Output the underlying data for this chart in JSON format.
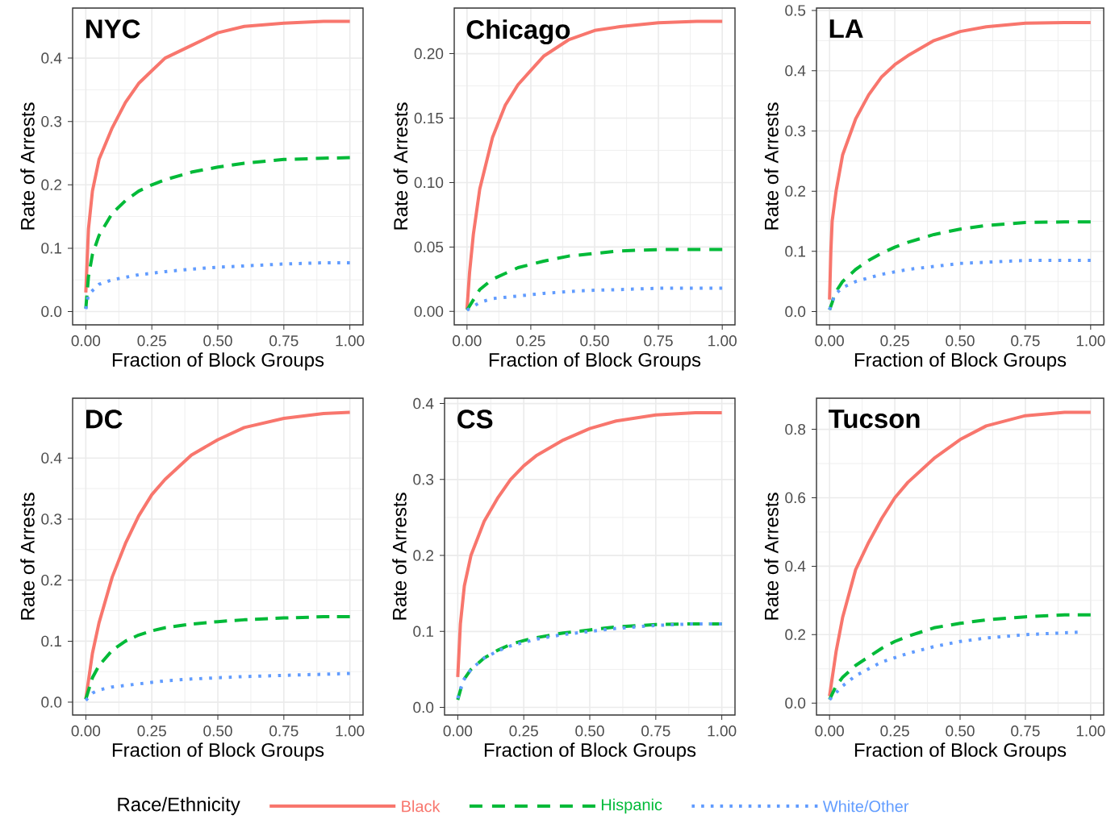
{
  "chart_data": [
    {
      "type": "line",
      "title": "NYC",
      "xlabel": "Fraction of Block Groups",
      "ylabel": "Rate of Arrests",
      "grid": true,
      "xlim": [
        -0.05,
        1.05
      ],
      "ylim": [
        -0.021,
        0.479
      ],
      "xticks": [
        {
          "value": 0,
          "label": "0.00"
        },
        {
          "value": 0.25,
          "label": "0.25"
        },
        {
          "value": 0.5,
          "label": "0.50"
        },
        {
          "value": 0.75,
          "label": "0.75"
        },
        {
          "value": 1,
          "label": "1.00"
        }
      ],
      "yticks": [
        {
          "value": 0,
          "label": "0.0"
        },
        {
          "value": 0.1,
          "label": "0.1"
        },
        {
          "value": 0.2,
          "label": "0.2"
        },
        {
          "value": 0.3,
          "label": "0.3"
        },
        {
          "value": 0.4,
          "label": "0.4"
        }
      ],
      "series": [
        {
          "color": "#f8766d",
          "line_style": "solid",
          "x": [
            0,
            0.01,
            0.025,
            0.05,
            0.1,
            0.15,
            0.2,
            0.25,
            0.3,
            0.4,
            0.5,
            0.6,
            0.75,
            0.9,
            1
          ],
          "values": [
            0.03,
            0.13,
            0.19,
            0.24,
            0.29,
            0.33,
            0.36,
            0.38,
            0.4,
            0.42,
            0.44,
            0.45,
            0.455,
            0.458,
            0.458
          ]
        },
        {
          "color": "#00ba38",
          "line_style": "dashed",
          "x": [
            0,
            0.005,
            0.01,
            0.025,
            0.05,
            0.1,
            0.15,
            0.2,
            0.25,
            0.3,
            0.4,
            0.5,
            0.6,
            0.75,
            0.9,
            1
          ],
          "values": [
            0.005,
            0.03,
            0.055,
            0.09,
            0.12,
            0.155,
            0.175,
            0.19,
            0.2,
            0.208,
            0.22,
            0.228,
            0.234,
            0.24,
            0.242,
            0.243
          ]
        },
        {
          "color": "#619cff",
          "line_style": "dotted",
          "x": [
            0,
            0.01,
            0.05,
            0.1,
            0.2,
            0.3,
            0.4,
            0.5,
            0.6,
            0.75,
            0.9,
            1
          ],
          "values": [
            0.004,
            0.027,
            0.043,
            0.05,
            0.058,
            0.063,
            0.067,
            0.07,
            0.072,
            0.075,
            0.077,
            0.077
          ]
        }
      ]
    },
    {
      "type": "line",
      "title": "Chicago",
      "xlabel": "Fraction of Block Groups",
      "ylabel": "Rate of Arrests",
      "grid": true,
      "xlim": [
        -0.05,
        1.05
      ],
      "ylim": [
        -0.0104,
        0.2354
      ],
      "xticks": [
        {
          "value": 0,
          "label": "0.00"
        },
        {
          "value": 0.25,
          "label": "0.25"
        },
        {
          "value": 0.5,
          "label": "0.50"
        },
        {
          "value": 0.75,
          "label": "0.75"
        },
        {
          "value": 1,
          "label": "1.00"
        }
      ],
      "yticks": [
        {
          "value": 0,
          "label": "0.00"
        },
        {
          "value": 0.05,
          "label": "0.05"
        },
        {
          "value": 0.1,
          "label": "0.10"
        },
        {
          "value": 0.15,
          "label": "0.15"
        },
        {
          "value": 0.2,
          "label": "0.20"
        }
      ],
      "series": [
        {
          "color": "#f8766d",
          "line_style": "solid",
          "x": [
            0,
            0.01,
            0.025,
            0.05,
            0.1,
            0.15,
            0.2,
            0.25,
            0.3,
            0.4,
            0.5,
            0.6,
            0.75,
            0.9,
            1
          ],
          "values": [
            0.002,
            0.03,
            0.06,
            0.095,
            0.135,
            0.16,
            0.176,
            0.187,
            0.198,
            0.211,
            0.218,
            0.221,
            0.224,
            0.225,
            0.225
          ]
        },
        {
          "color": "#00ba38",
          "line_style": "dashed",
          "x": [
            0,
            0.05,
            0.1,
            0.2,
            0.3,
            0.4,
            0.5,
            0.6,
            0.75,
            1
          ],
          "values": [
            0.001,
            0.017,
            0.025,
            0.034,
            0.039,
            0.043,
            0.045,
            0.047,
            0.048,
            0.048
          ]
        },
        {
          "color": "#619cff",
          "line_style": "dotted",
          "x": [
            0,
            0.05,
            0.1,
            0.2,
            0.3,
            0.4,
            0.5,
            0.6,
            0.75,
            1
          ],
          "values": [
            0.001,
            0.007,
            0.01,
            0.012,
            0.014,
            0.0155,
            0.0165,
            0.017,
            0.018,
            0.018
          ]
        }
      ]
    },
    {
      "type": "line",
      "title": "LA",
      "xlabel": "Fraction of Block Groups",
      "ylabel": "Rate of Arrests",
      "grid": true,
      "xlim": [
        -0.05,
        1.05
      ],
      "ylim": [
        -0.022,
        0.504
      ],
      "xticks": [
        {
          "value": 0,
          "label": "0.00"
        },
        {
          "value": 0.25,
          "label": "0.25"
        },
        {
          "value": 0.5,
          "label": "0.50"
        },
        {
          "value": 0.75,
          "label": "0.75"
        },
        {
          "value": 1,
          "label": "1.00"
        }
      ],
      "yticks": [
        {
          "value": 0,
          "label": "0.0"
        },
        {
          "value": 0.1,
          "label": "0.1"
        },
        {
          "value": 0.2,
          "label": "0.2"
        },
        {
          "value": 0.3,
          "label": "0.3"
        },
        {
          "value": 0.4,
          "label": "0.4"
        },
        {
          "value": 0.5,
          "label": "0.5"
        }
      ],
      "series": [
        {
          "color": "#f8766d",
          "line_style": "solid",
          "x": [
            0,
            0.005,
            0.01,
            0.025,
            0.05,
            0.1,
            0.15,
            0.2,
            0.25,
            0.3,
            0.4,
            0.5,
            0.6,
            0.75,
            0.9,
            1
          ],
          "values": [
            0.02,
            0.1,
            0.15,
            0.2,
            0.26,
            0.32,
            0.36,
            0.39,
            0.41,
            0.425,
            0.45,
            0.465,
            0.473,
            0.479,
            0.48,
            0.48
          ]
        },
        {
          "color": "#00ba38",
          "line_style": "dashed",
          "x": [
            0,
            0.01,
            0.02,
            0.05,
            0.1,
            0.15,
            0.2,
            0.25,
            0.3,
            0.4,
            0.5,
            0.6,
            0.75,
            0.9,
            1
          ],
          "values": [
            0.003,
            0.015,
            0.03,
            0.05,
            0.07,
            0.085,
            0.097,
            0.107,
            0.115,
            0.128,
            0.137,
            0.143,
            0.148,
            0.149,
            0.149
          ]
        },
        {
          "color": "#619cff",
          "line_style": "dotted",
          "x": [
            0,
            0.02,
            0.05,
            0.1,
            0.2,
            0.3,
            0.4,
            0.5,
            0.6,
            0.75,
            1
          ],
          "values": [
            0.003,
            0.028,
            0.04,
            0.05,
            0.062,
            0.07,
            0.075,
            0.08,
            0.082,
            0.085,
            0.085
          ]
        }
      ]
    },
    {
      "type": "line",
      "title": "DC",
      "xlabel": "Fraction of Block Groups",
      "ylabel": "Rate of Arrests",
      "grid": true,
      "xlim": [
        -0.05,
        1.05
      ],
      "ylim": [
        -0.021,
        0.498
      ],
      "xticks": [
        {
          "value": 0,
          "label": "0.00"
        },
        {
          "value": 0.25,
          "label": "0.25"
        },
        {
          "value": 0.5,
          "label": "0.50"
        },
        {
          "value": 0.75,
          "label": "0.75"
        },
        {
          "value": 1,
          "label": "1.00"
        }
      ],
      "yticks": [
        {
          "value": 0,
          "label": "0.0"
        },
        {
          "value": 0.1,
          "label": "0.1"
        },
        {
          "value": 0.2,
          "label": "0.2"
        },
        {
          "value": 0.3,
          "label": "0.3"
        },
        {
          "value": 0.4,
          "label": "0.4"
        }
      ],
      "series": [
        {
          "color": "#f8766d",
          "line_style": "solid",
          "x": [
            0,
            0.025,
            0.05,
            0.1,
            0.15,
            0.2,
            0.25,
            0.3,
            0.4,
            0.5,
            0.6,
            0.75,
            0.9,
            1
          ],
          "values": [
            0.005,
            0.08,
            0.13,
            0.205,
            0.26,
            0.305,
            0.34,
            0.365,
            0.405,
            0.43,
            0.45,
            0.465,
            0.473,
            0.475
          ]
        },
        {
          "color": "#00ba38",
          "line_style": "dashed",
          "x": [
            0,
            0.025,
            0.05,
            0.1,
            0.15,
            0.2,
            0.25,
            0.3,
            0.4,
            0.5,
            0.6,
            0.75,
            0.9,
            1
          ],
          "values": [
            0.005,
            0.04,
            0.06,
            0.085,
            0.1,
            0.11,
            0.117,
            0.122,
            0.128,
            0.132,
            0.135,
            0.138,
            0.14,
            0.14
          ]
        },
        {
          "color": "#619cff",
          "line_style": "dotted",
          "x": [
            0,
            0.025,
            0.05,
            0.1,
            0.2,
            0.3,
            0.4,
            0.5,
            0.6,
            0.75,
            1
          ],
          "values": [
            0.003,
            0.015,
            0.02,
            0.025,
            0.03,
            0.035,
            0.038,
            0.04,
            0.042,
            0.044,
            0.047
          ]
        }
      ]
    },
    {
      "type": "line",
      "title": "CS",
      "xlabel": "Fraction of Block Groups",
      "ylabel": "Rate of Arrests",
      "grid": true,
      "xlim": [
        -0.05,
        1.05
      ],
      "ylim": [
        -0.01,
        0.407
      ],
      "xticks": [
        {
          "value": 0,
          "label": "0.00"
        },
        {
          "value": 0.25,
          "label": "0.25"
        },
        {
          "value": 0.5,
          "label": "0.50"
        },
        {
          "value": 0.75,
          "label": "0.75"
        },
        {
          "value": 1,
          "label": "1.00"
        }
      ],
      "yticks": [
        {
          "value": 0,
          "label": "0.0"
        },
        {
          "value": 0.1,
          "label": "0.1"
        },
        {
          "value": 0.2,
          "label": "0.2"
        },
        {
          "value": 0.3,
          "label": "0.3"
        },
        {
          "value": 0.4,
          "label": "0.4"
        }
      ],
      "series": [
        {
          "color": "#f8766d",
          "line_style": "solid",
          "x": [
            0,
            0.01,
            0.025,
            0.05,
            0.1,
            0.15,
            0.2,
            0.25,
            0.3,
            0.4,
            0.5,
            0.6,
            0.75,
            0.9,
            1
          ],
          "values": [
            0.04,
            0.11,
            0.16,
            0.2,
            0.245,
            0.275,
            0.3,
            0.318,
            0.332,
            0.352,
            0.367,
            0.377,
            0.385,
            0.388,
            0.388
          ]
        },
        {
          "color": "#00ba38",
          "line_style": "dashed",
          "x": [
            0,
            0.02,
            0.05,
            0.1,
            0.15,
            0.2,
            0.25,
            0.3,
            0.4,
            0.5,
            0.6,
            0.75,
            0.9,
            1
          ],
          "values": [
            0.01,
            0.035,
            0.05,
            0.065,
            0.075,
            0.083,
            0.088,
            0.092,
            0.098,
            0.102,
            0.106,
            0.109,
            0.11,
            0.11
          ]
        },
        {
          "color": "#619cff",
          "line_style": "dotted",
          "x": [
            0,
            0.02,
            0.05,
            0.1,
            0.15,
            0.2,
            0.3,
            0.4,
            0.5,
            0.6,
            0.75,
            0.9,
            1
          ],
          "values": [
            0.012,
            0.035,
            0.05,
            0.065,
            0.074,
            0.081,
            0.09,
            0.096,
            0.1,
            0.104,
            0.108,
            0.11,
            0.11
          ]
        }
      ]
    },
    {
      "type": "line",
      "title": "Tucson",
      "xlabel": "Fraction of Block Groups",
      "ylabel": "Rate of Arrests",
      "grid": true,
      "legend": "bottom",
      "legend_title": "Race/Ethnicity",
      "xlim": [
        -0.05,
        1.05
      ],
      "ylim": [
        -0.035,
        0.891
      ],
      "xticks": [
        {
          "value": 0,
          "label": "0.00"
        },
        {
          "value": 0.25,
          "label": "0.25"
        },
        {
          "value": 0.5,
          "label": "0.50"
        },
        {
          "value": 0.75,
          "label": "0.75"
        },
        {
          "value": 1,
          "label": "1.00"
        }
      ],
      "yticks": [
        {
          "value": 0,
          "label": "0.0"
        },
        {
          "value": 0.2,
          "label": "0.2"
        },
        {
          "value": 0.4,
          "label": "0.4"
        },
        {
          "value": 0.6,
          "label": "0.6"
        },
        {
          "value": 0.8,
          "label": "0.8"
        }
      ],
      "series": [
        {
          "name": "Black",
          "color": "#f8766d",
          "line_style": "solid",
          "x": [
            0,
            0.025,
            0.05,
            0.1,
            0.15,
            0.2,
            0.25,
            0.3,
            0.4,
            0.5,
            0.6,
            0.75,
            0.9,
            1
          ],
          "values": [
            0.02,
            0.15,
            0.25,
            0.39,
            0.47,
            0.54,
            0.6,
            0.645,
            0.715,
            0.77,
            0.81,
            0.84,
            0.85,
            0.85
          ]
        },
        {
          "name": "Hispanic",
          "color": "#00ba38",
          "line_style": "dashed",
          "x": [
            0,
            0.025,
            0.05,
            0.1,
            0.15,
            0.2,
            0.25,
            0.3,
            0.4,
            0.5,
            0.6,
            0.75,
            0.9,
            1
          ],
          "values": [
            0.01,
            0.05,
            0.075,
            0.11,
            0.135,
            0.16,
            0.18,
            0.195,
            0.22,
            0.233,
            0.243,
            0.252,
            0.258,
            0.258
          ]
        },
        {
          "name": "White/Other",
          "color": "#619cff",
          "line_style": "dotted",
          "x": [
            0,
            0.05,
            0.1,
            0.15,
            0.2,
            0.3,
            0.4,
            0.5,
            0.6,
            0.75,
            0.95
          ],
          "values": [
            0.01,
            0.05,
            0.08,
            0.1,
            0.12,
            0.145,
            0.165,
            0.18,
            0.19,
            0.2,
            0.207
          ]
        }
      ]
    }
  ]
}
